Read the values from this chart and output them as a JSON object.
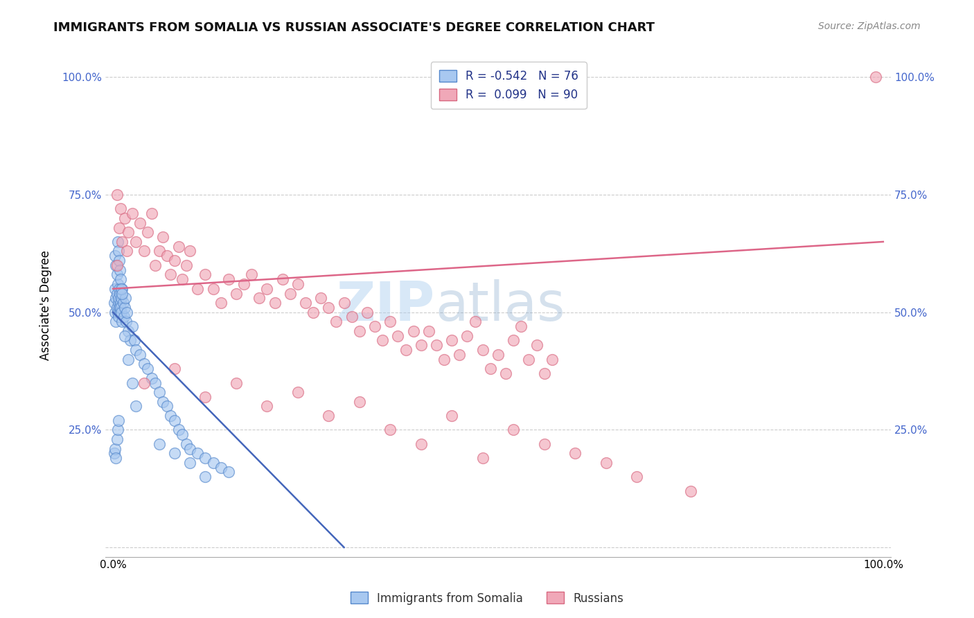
{
  "title": "IMMIGRANTS FROM SOMALIA VS RUSSIAN ASSOCIATE'S DEGREE CORRELATION CHART",
  "source": "Source: ZipAtlas.com",
  "ylabel": "Associate's Degree",
  "color_blue": "#a8c8f0",
  "color_blue_edge": "#5588cc",
  "color_pink": "#f0a8b8",
  "color_pink_edge": "#d86880",
  "line_color_blue": "#4466bb",
  "line_color_pink": "#dd6688",
  "legend_label1": "R = -0.542   N = 76",
  "legend_label2": "R =  0.099   N = 90",
  "watermark_zip": "ZIP",
  "watermark_atlas": "atlas",
  "title_fontsize": 13,
  "source_fontsize": 10,
  "tick_fontsize": 11,
  "somalia_x": [
    0.2,
    0.3,
    0.3,
    0.4,
    0.4,
    0.5,
    0.5,
    0.6,
    0.6,
    0.7,
    0.7,
    0.7,
    0.8,
    0.8,
    0.9,
    0.9,
    1.0,
    1.0,
    1.1,
    1.1,
    1.2,
    1.2,
    1.3,
    1.4,
    1.5,
    1.6,
    1.7,
    1.8,
    2.0,
    2.2,
    2.5,
    2.8,
    3.0,
    3.5,
    4.0,
    4.5,
    5.0,
    5.5,
    6.0,
    6.5,
    7.0,
    7.5,
    8.0,
    8.5,
    9.0,
    9.5,
    10.0,
    11.0,
    12.0,
    13.0,
    14.0,
    15.0,
    0.3,
    0.4,
    0.5,
    0.6,
    0.7,
    0.8,
    0.9,
    1.0,
    1.1,
    1.2,
    1.5,
    2.0,
    2.5,
    3.0,
    6.0,
    8.0,
    10.0,
    12.0,
    0.2,
    0.3,
    0.4,
    0.5,
    0.6,
    0.7
  ],
  "somalia_y": [
    52,
    55,
    50,
    53,
    48,
    54,
    51,
    56,
    50,
    52,
    49,
    53,
    51,
    55,
    50,
    54,
    52,
    51,
    53,
    50,
    55,
    48,
    52,
    49,
    51,
    53,
    48,
    50,
    46,
    44,
    47,
    44,
    42,
    41,
    39,
    38,
    36,
    35,
    33,
    31,
    30,
    28,
    27,
    25,
    24,
    22,
    21,
    20,
    19,
    18,
    17,
    16,
    62,
    60,
    58,
    65,
    63,
    61,
    59,
    57,
    55,
    54,
    45,
    40,
    35,
    30,
    22,
    20,
    18,
    15,
    20,
    21,
    19,
    23,
    25,
    27
  ],
  "russian_x": [
    0.5,
    0.8,
    1.0,
    1.2,
    1.5,
    1.8,
    2.0,
    2.5,
    3.0,
    3.5,
    4.0,
    4.5,
    5.0,
    5.5,
    6.0,
    6.5,
    7.0,
    7.5,
    8.0,
    8.5,
    9.0,
    9.5,
    10.0,
    11.0,
    12.0,
    13.0,
    14.0,
    15.0,
    16.0,
    17.0,
    18.0,
    19.0,
    20.0,
    21.0,
    22.0,
    23.0,
    24.0,
    25.0,
    26.0,
    27.0,
    28.0,
    29.0,
    30.0,
    31.0,
    32.0,
    33.0,
    34.0,
    35.0,
    36.0,
    37.0,
    38.0,
    39.0,
    40.0,
    41.0,
    42.0,
    43.0,
    44.0,
    45.0,
    46.0,
    47.0,
    48.0,
    49.0,
    50.0,
    51.0,
    52.0,
    53.0,
    54.0,
    55.0,
    56.0,
    57.0,
    4.0,
    8.0,
    12.0,
    16.0,
    20.0,
    24.0,
    28.0,
    32.0,
    36.0,
    40.0,
    44.0,
    48.0,
    52.0,
    56.0,
    60.0,
    64.0,
    68.0,
    75.0,
    99.0,
    0.5
  ],
  "russian_y": [
    60,
    68,
    72,
    65,
    70,
    63,
    67,
    71,
    65,
    69,
    63,
    67,
    71,
    60,
    63,
    66,
    62,
    58,
    61,
    64,
    57,
    60,
    63,
    55,
    58,
    55,
    52,
    57,
    54,
    56,
    58,
    53,
    55,
    52,
    57,
    54,
    56,
    52,
    50,
    53,
    51,
    48,
    52,
    49,
    46,
    50,
    47,
    44,
    48,
    45,
    42,
    46,
    43,
    46,
    43,
    40,
    44,
    41,
    45,
    48,
    42,
    38,
    41,
    37,
    44,
    47,
    40,
    43,
    37,
    40,
    35,
    38,
    32,
    35,
    30,
    33,
    28,
    31,
    25,
    22,
    28,
    19,
    25,
    22,
    20,
    18,
    15,
    12,
    100,
    75
  ]
}
